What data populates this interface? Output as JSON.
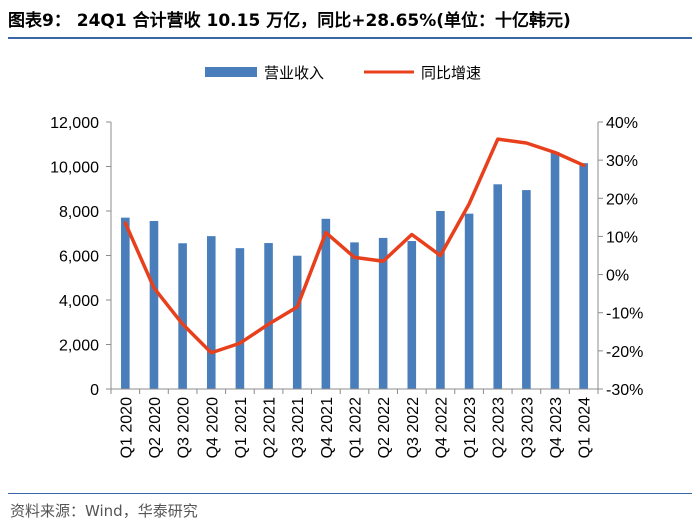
{
  "header": {
    "title": "图表9： 24Q1 合计营收 10.15 万亿，同比+28.65%(单位：十亿韩元)"
  },
  "footer": {
    "source": "资料来源：Wind，华泰研究"
  },
  "colors": {
    "bar": "#4a7ebb",
    "line": "#e8401c",
    "rule": "#3a66a8",
    "axis": "#8c8c8c"
  },
  "chart_data": {
    "type": "bar",
    "categories": [
      "Q1 2020",
      "Q2 2020",
      "Q3 2020",
      "Q4 2020",
      "Q1 2021",
      "Q2 2021",
      "Q3 2021",
      "Q4 2021",
      "Q1 2022",
      "Q2 2022",
      "Q3 2022",
      "Q4 2022",
      "Q1 2023",
      "Q2 2023",
      "Q3 2023",
      "Q4 2023",
      "Q1 2024"
    ],
    "series": [
      {
        "name": "营业收入",
        "type": "bar",
        "axis": "left",
        "values": [
          7700,
          7550,
          6550,
          6870,
          6330,
          6560,
          5990,
          7650,
          6590,
          6790,
          6650,
          8000,
          7880,
          9200,
          8940,
          10650,
          10150
        ]
      },
      {
        "name": "同比增速",
        "type": "line",
        "axis": "right",
        "values": [
          13.5,
          -3.5,
          -13.0,
          -20.5,
          -18.0,
          -13.0,
          -8.5,
          11.0,
          4.5,
          3.5,
          10.5,
          5.0,
          18.5,
          35.5,
          34.5,
          32.0,
          28.65
        ]
      }
    ],
    "left_axis": {
      "min": 0,
      "max": 12000,
      "ticks": [
        0,
        2000,
        4000,
        6000,
        8000,
        10000,
        12000
      ],
      "tick_labels": [
        "0",
        "2,000",
        "4,000",
        "6,000",
        "8,000",
        "10,000",
        "12,000"
      ]
    },
    "right_axis": {
      "min": -30,
      "max": 40,
      "ticks": [
        -30,
        -20,
        -10,
        0,
        10,
        20,
        30,
        40
      ],
      "tick_labels": [
        "-30%",
        "-20%",
        "-10%",
        "0%",
        "10%",
        "20%",
        "30%",
        "40%"
      ]
    },
    "legend": {
      "position": "top-center"
    },
    "grid": false
  }
}
